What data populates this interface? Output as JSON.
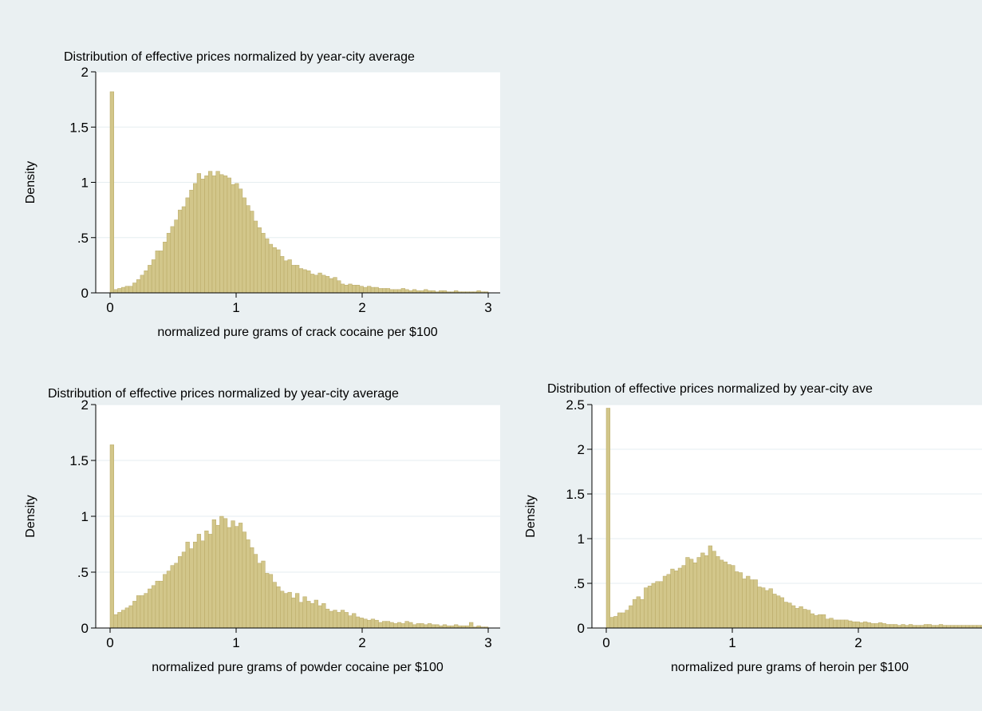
{
  "colors": {
    "background": "#eaf0f2",
    "plot_background": "#ffffff",
    "bar_fill": "#d2c68a",
    "bar_stroke": "#b8a864",
    "gridline": "#e6eef0",
    "axis": "#000000"
  },
  "chart_data": [
    {
      "type": "bar",
      "title": "Distribution of effective prices normalized by year-city average",
      "xlabel": "normalized pure grams of crack cocaine per $100",
      "ylabel": "Density",
      "xlim": [
        0,
        3
      ],
      "ylim": [
        0,
        2
      ],
      "grid": true,
      "bin_width": 0.03,
      "x_ticks": [
        0,
        1,
        2,
        3
      ],
      "x_tick_labels": [
        "0",
        "1",
        "2",
        "3"
      ],
      "y_ticks": [
        0,
        0.5,
        1,
        1.5,
        2
      ],
      "y_tick_labels": [
        "0",
        ".5",
        "1",
        "1.5",
        "2"
      ],
      "values": [
        1.82,
        0.03,
        0.04,
        0.05,
        0.06,
        0.06,
        0.09,
        0.12,
        0.16,
        0.2,
        0.25,
        0.3,
        0.38,
        0.38,
        0.46,
        0.54,
        0.6,
        0.66,
        0.75,
        0.78,
        0.86,
        0.93,
        0.99,
        1.08,
        1.03,
        1.06,
        1.1,
        1.06,
        1.1,
        1.07,
        1.06,
        1.04,
        0.98,
        0.99,
        0.94,
        0.86,
        0.79,
        0.74,
        0.65,
        0.59,
        0.54,
        0.49,
        0.44,
        0.41,
        0.39,
        0.33,
        0.29,
        0.3,
        0.25,
        0.25,
        0.22,
        0.21,
        0.2,
        0.17,
        0.16,
        0.18,
        0.16,
        0.15,
        0.13,
        0.14,
        0.11,
        0.08,
        0.07,
        0.08,
        0.07,
        0.07,
        0.06,
        0.05,
        0.06,
        0.05,
        0.05,
        0.04,
        0.04,
        0.04,
        0.03,
        0.03,
        0.03,
        0.04,
        0.03,
        0.02,
        0.03,
        0.02,
        0.02,
        0.03,
        0.02,
        0.02,
        0.01,
        0.02,
        0.02,
        0.01,
        0.01,
        0.02,
        0.01,
        0.01,
        0.01,
        0.01,
        0.01,
        0.02,
        0.01,
        0.01
      ]
    },
    {
      "type": "bar",
      "title": "Distribution of effective prices normalized by year-city average",
      "xlabel": "normalized pure grams of powder cocaine per $100",
      "ylabel": "Density",
      "xlim": [
        0,
        3
      ],
      "ylim": [
        0,
        2
      ],
      "grid": true,
      "bin_width": 0.03,
      "x_ticks": [
        0,
        1,
        2,
        3
      ],
      "x_tick_labels": [
        "0",
        "1",
        "2",
        "3"
      ],
      "y_ticks": [
        0,
        0.5,
        1,
        1.5,
        2
      ],
      "y_tick_labels": [
        "0",
        ".5",
        "1",
        "1.5",
        "2"
      ],
      "values": [
        1.64,
        0.12,
        0.14,
        0.16,
        0.18,
        0.2,
        0.24,
        0.29,
        0.29,
        0.31,
        0.35,
        0.38,
        0.42,
        0.42,
        0.48,
        0.51,
        0.56,
        0.58,
        0.64,
        0.68,
        0.77,
        0.71,
        0.77,
        0.84,
        0.78,
        0.87,
        0.84,
        0.97,
        0.92,
        1.0,
        0.98,
        0.9,
        0.96,
        0.91,
        0.94,
        0.86,
        0.79,
        0.72,
        0.66,
        0.58,
        0.6,
        0.49,
        0.48,
        0.41,
        0.37,
        0.33,
        0.31,
        0.32,
        0.27,
        0.31,
        0.23,
        0.28,
        0.24,
        0.22,
        0.25,
        0.2,
        0.22,
        0.17,
        0.15,
        0.16,
        0.14,
        0.16,
        0.14,
        0.11,
        0.13,
        0.1,
        0.09,
        0.08,
        0.07,
        0.08,
        0.07,
        0.05,
        0.06,
        0.06,
        0.05,
        0.04,
        0.05,
        0.04,
        0.06,
        0.05,
        0.03,
        0.04,
        0.04,
        0.03,
        0.04,
        0.03,
        0.03,
        0.02,
        0.03,
        0.02,
        0.02,
        0.03,
        0.02,
        0.02,
        0.02,
        0.05,
        0.01,
        0.02,
        0.01,
        0.01
      ]
    },
    {
      "type": "bar",
      "title": "Distribution of effective prices normalized by year-city ave",
      "xlabel": "normalized pure grams of heroin per $100",
      "ylabel": "Density",
      "xlim": [
        0,
        3
      ],
      "ylim": [
        0,
        2.5
      ],
      "grid": true,
      "bin_width": 0.03,
      "x_ticks": [
        0,
        1,
        2
      ],
      "x_tick_labels": [
        "0",
        "1",
        "2"
      ],
      "y_ticks": [
        0,
        0.5,
        1,
        1.5,
        2,
        2.5
      ],
      "y_tick_labels": [
        "0",
        ".5",
        "1",
        "1.5",
        "2",
        "2.5"
      ],
      "values": [
        2.46,
        0.12,
        0.13,
        0.17,
        0.17,
        0.2,
        0.25,
        0.32,
        0.35,
        0.32,
        0.45,
        0.47,
        0.5,
        0.52,
        0.52,
        0.58,
        0.6,
        0.66,
        0.64,
        0.67,
        0.7,
        0.79,
        0.77,
        0.73,
        0.79,
        0.84,
        0.81,
        0.92,
        0.86,
        0.8,
        0.76,
        0.74,
        0.71,
        0.7,
        0.63,
        0.62,
        0.55,
        0.58,
        0.54,
        0.54,
        0.46,
        0.45,
        0.42,
        0.44,
        0.38,
        0.36,
        0.34,
        0.29,
        0.28,
        0.25,
        0.22,
        0.24,
        0.21,
        0.2,
        0.16,
        0.14,
        0.15,
        0.15,
        0.1,
        0.11,
        0.09,
        0.09,
        0.09,
        0.09,
        0.08,
        0.07,
        0.07,
        0.06,
        0.07,
        0.06,
        0.05,
        0.05,
        0.06,
        0.05,
        0.04,
        0.04,
        0.04,
        0.03,
        0.04,
        0.03,
        0.04,
        0.03,
        0.03,
        0.03,
        0.04,
        0.04,
        0.03,
        0.03,
        0.04,
        0.03,
        0.03,
        0.03,
        0.03,
        0.03,
        0.03,
        0.03,
        0.03,
        0.03,
        0.03,
        0.03
      ]
    }
  ]
}
